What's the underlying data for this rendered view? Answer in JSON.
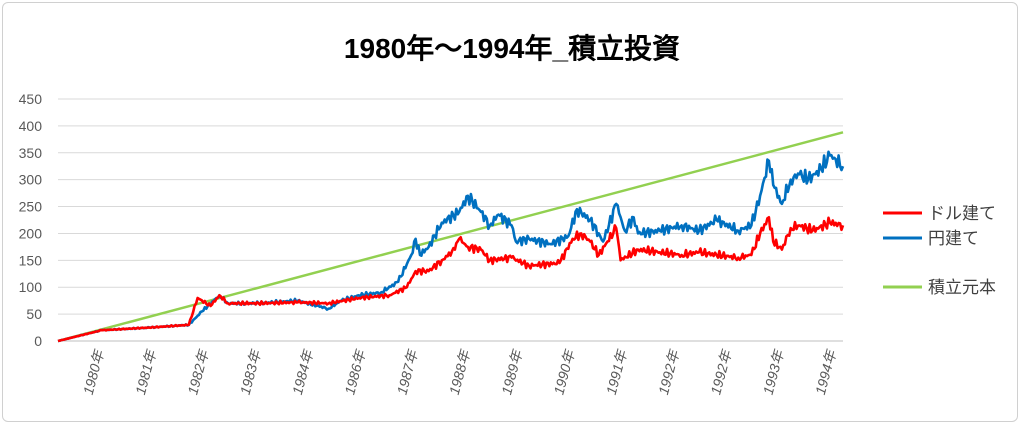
{
  "chart_data": {
    "type": "line",
    "title": "1980年～1994年_積立投資",
    "xlabel": "",
    "ylabel": "",
    "ylim": [
      0,
      450
    ],
    "yticks": [
      0,
      50,
      100,
      150,
      200,
      250,
      300,
      350,
      400,
      450
    ],
    "x_unit": "months since start",
    "xlim": [
      0,
      180
    ],
    "xtick_labels": [
      "1980年",
      "1981年",
      "1982年",
      "1983年",
      "1984年",
      "1986年",
      "1987年",
      "1988年",
      "1989年",
      "1990年",
      "1991年",
      "1992年",
      "1992年",
      "1993年",
      "1994年"
    ],
    "grid": true,
    "legend_position": "right",
    "series": [
      {
        "name": "ドル建て",
        "color": "#ff0000",
        "points": [
          [
            0,
            0
          ],
          [
            10,
            20
          ],
          [
            21,
            25
          ],
          [
            30,
            30
          ],
          [
            32,
            80
          ],
          [
            35,
            65
          ],
          [
            37,
            85
          ],
          [
            39,
            70
          ],
          [
            46,
            70
          ],
          [
            55,
            72
          ],
          [
            62,
            70
          ],
          [
            69,
            80
          ],
          [
            76,
            85
          ],
          [
            80,
            100
          ],
          [
            82,
            130
          ],
          [
            85,
            130
          ],
          [
            88,
            150
          ],
          [
            91,
            170
          ],
          [
            92,
            190
          ],
          [
            94,
            175
          ],
          [
            97,
            170
          ],
          [
            99,
            150
          ],
          [
            104,
            155
          ],
          [
            108,
            140
          ],
          [
            115,
            145
          ],
          [
            118,
            190
          ],
          [
            120,
            200
          ],
          [
            122,
            185
          ],
          [
            124,
            160
          ],
          [
            128,
            210
          ],
          [
            129,
            150
          ],
          [
            133,
            170
          ],
          [
            138,
            165
          ],
          [
            143,
            160
          ],
          [
            147,
            165
          ],
          [
            151,
            160
          ],
          [
            156,
            155
          ],
          [
            159,
            160
          ],
          [
            161,
            200
          ],
          [
            163,
            230
          ],
          [
            164,
            185
          ],
          [
            166,
            170
          ],
          [
            168,
            210
          ],
          [
            170,
            215
          ],
          [
            173,
            205
          ],
          [
            177,
            220
          ],
          [
            180,
            215
          ]
        ]
      },
      {
        "name": "円建て",
        "color": "#0070c0",
        "points": [
          [
            0,
            0
          ],
          [
            10,
            20
          ],
          [
            21,
            25
          ],
          [
            30,
            30
          ],
          [
            33,
            55
          ],
          [
            37,
            85
          ],
          [
            39,
            70
          ],
          [
            46,
            70
          ],
          [
            55,
            75
          ],
          [
            62,
            60
          ],
          [
            65,
            75
          ],
          [
            69,
            85
          ],
          [
            74,
            90
          ],
          [
            78,
            110
          ],
          [
            81,
            160
          ],
          [
            82,
            190
          ],
          [
            83,
            160
          ],
          [
            85,
            175
          ],
          [
            88,
            220
          ],
          [
            92,
            240
          ],
          [
            94,
            270
          ],
          [
            97,
            240
          ],
          [
            99,
            215
          ],
          [
            101,
            235
          ],
          [
            104,
            215
          ],
          [
            105,
            185
          ],
          [
            108,
            190
          ],
          [
            113,
            180
          ],
          [
            117,
            195
          ],
          [
            119,
            245
          ],
          [
            122,
            225
          ],
          [
            124,
            200
          ],
          [
            125,
            185
          ],
          [
            128,
            255
          ],
          [
            130,
            205
          ],
          [
            132,
            230
          ],
          [
            133,
            200
          ],
          [
            138,
            205
          ],
          [
            143,
            215
          ],
          [
            147,
            205
          ],
          [
            151,
            225
          ],
          [
            156,
            205
          ],
          [
            159,
            215
          ],
          [
            161,
            270
          ],
          [
            163,
            335
          ],
          [
            164,
            290
          ],
          [
            166,
            255
          ],
          [
            168,
            300
          ],
          [
            170,
            310
          ],
          [
            172,
            300
          ],
          [
            175,
            320
          ],
          [
            177,
            345
          ],
          [
            180,
            325
          ]
        ]
      },
      {
        "name": "積立元本",
        "color": "#92d050",
        "points": [
          [
            0,
            0
          ],
          [
            180,
            388
          ]
        ]
      }
    ]
  }
}
